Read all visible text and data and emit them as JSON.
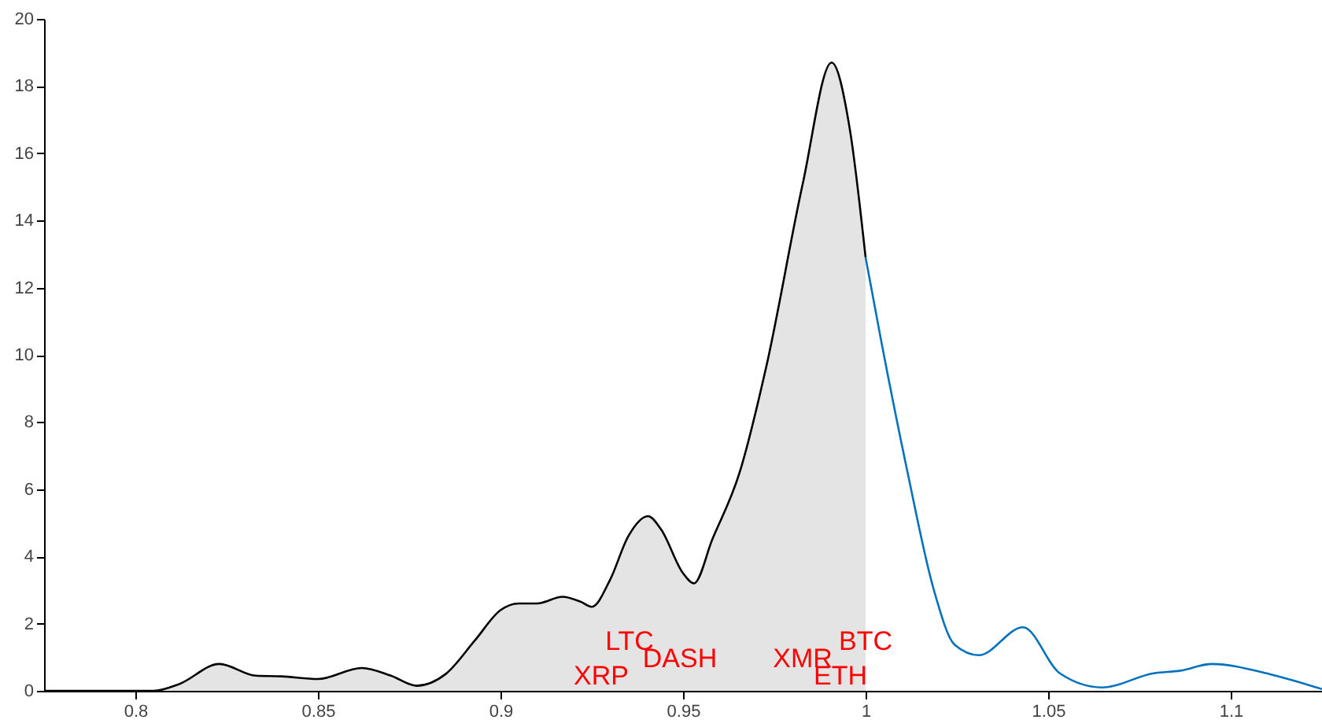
{
  "chart_data": {
    "type": "area",
    "xlim": [
      0.775,
      1.125
    ],
    "ylim": [
      0,
      20
    ],
    "xticks": [
      0.8,
      0.85,
      0.9,
      0.95,
      1,
      1.05,
      1.1
    ],
    "yticks": [
      0,
      2,
      4,
      6,
      8,
      10,
      12,
      14,
      16,
      18,
      20
    ],
    "grid": false,
    "series": [
      {
        "type": "area",
        "color": "#d9d9d9",
        "x": [
          0.775,
          0.805,
          0.812,
          0.823,
          0.833,
          0.84,
          0.85,
          0.862,
          0.87,
          0.877,
          0.885,
          0.893,
          0.9,
          0.905,
          0.91,
          0.917,
          0.922,
          0.925,
          0.93,
          0.935,
          0.9404,
          0.944,
          0.95,
          0.953,
          0.958,
          0.9655,
          0.9727,
          0.9828,
          0.9907,
          0.9957,
          1.0
        ],
        "values": [
          0,
          0,
          0.2,
          0.8,
          0.45,
          0.43,
          0.35,
          0.68,
          0.45,
          0.15,
          0.5,
          1.5,
          2.4,
          2.6,
          2.6,
          2.8,
          2.65,
          2.5,
          3.3,
          4.6,
          5.2,
          4.8,
          3.5,
          3.2,
          4.5,
          6.5,
          9.6,
          15.1,
          18.7,
          16.7,
          12.9
        ]
      },
      {
        "type": "line",
        "color": "#0072bd",
        "x": [
          1.0,
          1.0043,
          1.0115,
          1.0187,
          1.0244,
          1.031,
          1.0431,
          1.0532,
          1.0647,
          1.0789,
          1.0862,
          1.0948,
          1.1106,
          1.125
        ],
        "values": [
          12.9,
          10.4,
          6.5,
          3.0,
          1.37,
          1.06,
          1.89,
          0.52,
          0.1,
          0.52,
          0.6,
          0.8,
          0.5,
          0.05
        ]
      }
    ],
    "annotations": [
      "XRP",
      "LTC",
      "DASH",
      "XMR",
      "ETH",
      "BTC"
    ]
  }
}
